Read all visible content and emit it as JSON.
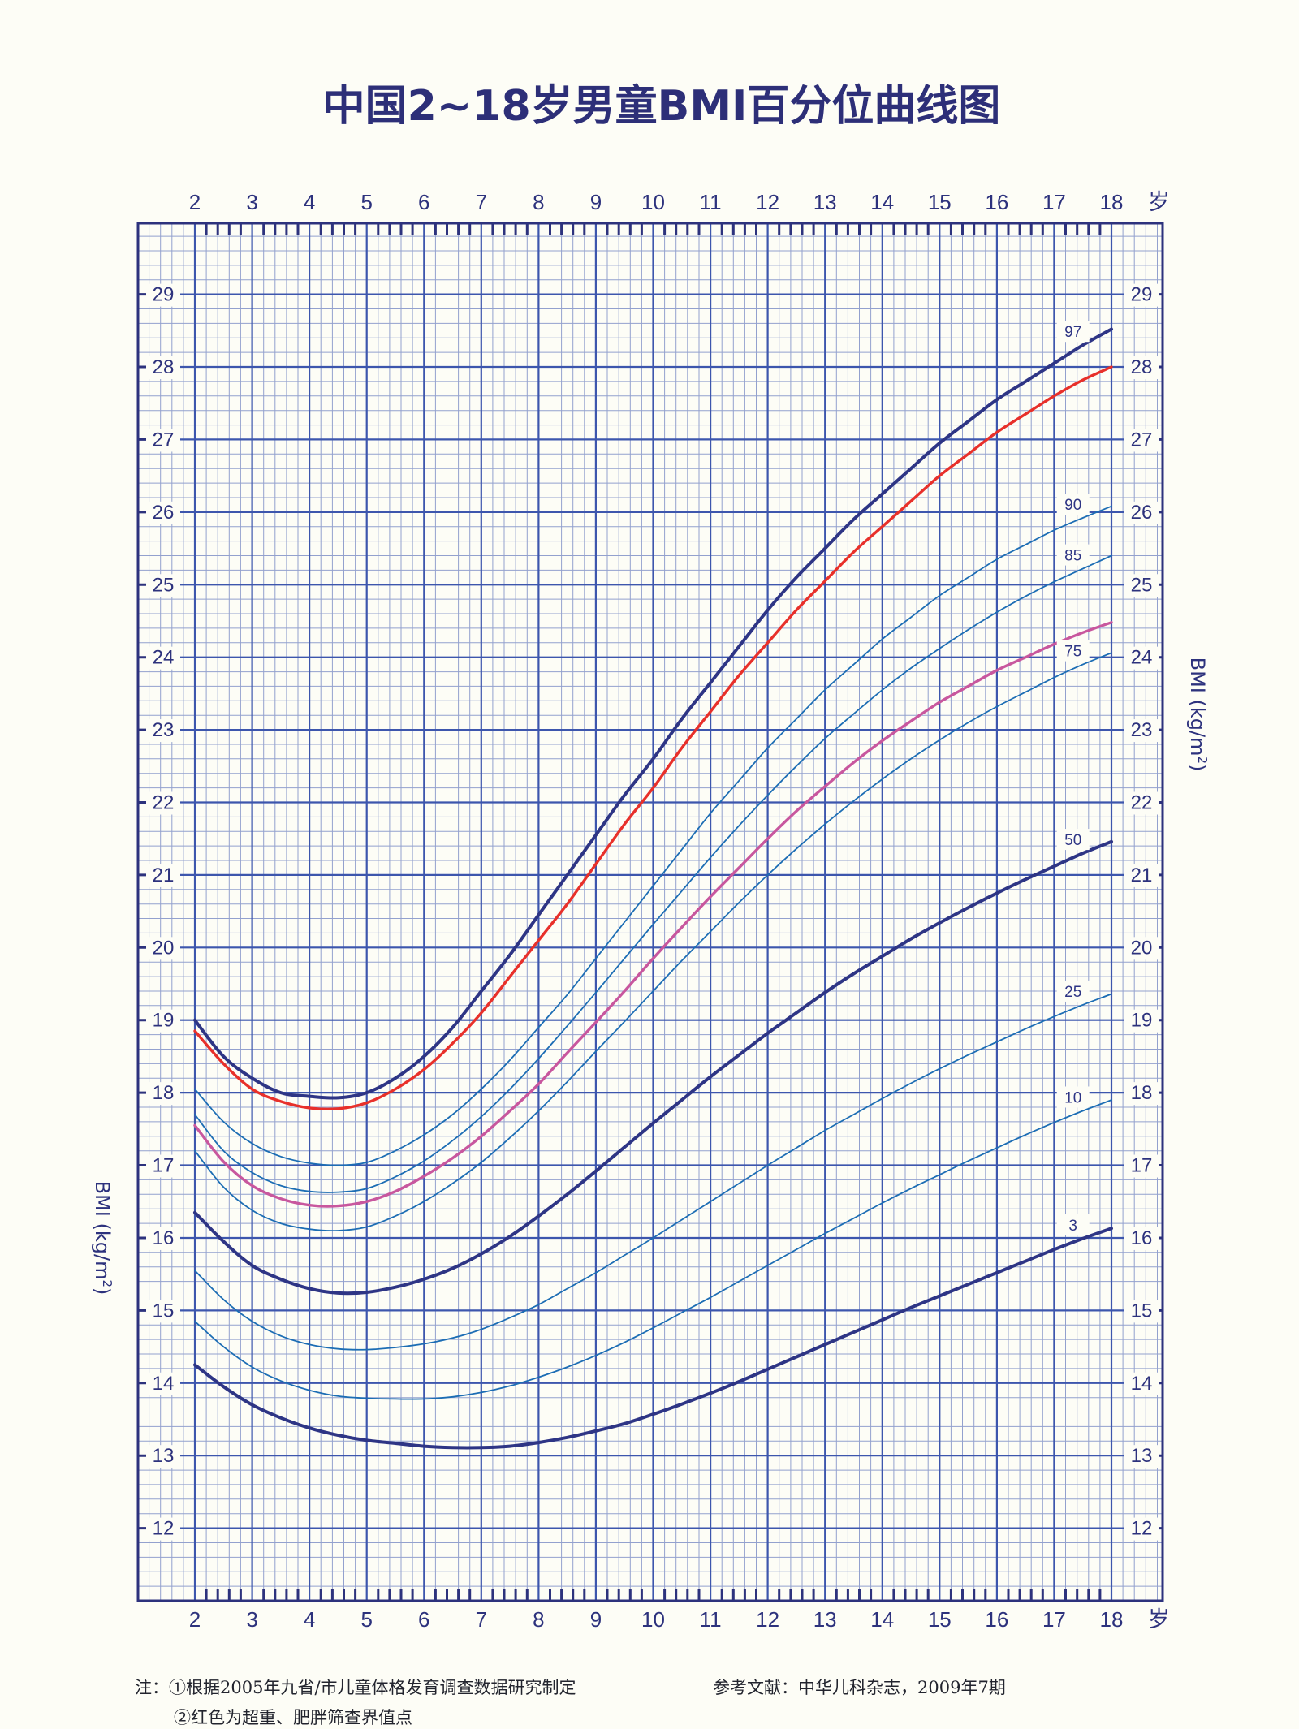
{
  "chart_data": {
    "type": "line",
    "title": "中国2~18岁男童BMI百分位曲线图",
    "x_label_unit": "岁",
    "y_label": "BMI (kg/m²)",
    "y_label_parts": {
      "main": "BMI (kg/m",
      "sup": "2",
      "close": ")"
    },
    "x_ticks": [
      2,
      3,
      4,
      5,
      6,
      7,
      8,
      9,
      10,
      11,
      12,
      13,
      14,
      15,
      16,
      17,
      18
    ],
    "y_ticks": [
      12,
      13,
      14,
      15,
      16,
      17,
      18,
      19,
      20,
      21,
      22,
      23,
      24,
      25,
      26,
      27,
      28,
      29
    ],
    "xlim": [
      2,
      18
    ],
    "ylim": [
      11,
      29.98
    ],
    "colors": {
      "grid": "#3d56ad",
      "frame": "#2d327d",
      "major_line": "#2e3585",
      "minor_line": "#1c6db4",
      "overweight": "#e8302a",
      "obesity_85": "#c8579e",
      "title": "#2d2f78"
    },
    "series": [
      {
        "name": "97",
        "label": "97",
        "style": "major",
        "extends": true,
        "x": [
          2,
          2.5,
          3,
          3.5,
          4,
          4.5,
          5,
          5.5,
          6,
          6.5,
          7,
          7.5,
          8,
          8.5,
          9,
          9.5,
          10,
          10.5,
          11,
          11.5,
          12,
          12.5,
          13,
          13.5,
          14,
          14.5,
          15,
          15.5,
          16,
          16.5,
          17,
          17.5,
          18
        ],
        "y": [
          19.0,
          18.5,
          18.2,
          18.0,
          17.95,
          17.93,
          18.0,
          18.2,
          18.5,
          18.9,
          19.4,
          19.9,
          20.45,
          21.0,
          21.55,
          22.1,
          22.6,
          23.15,
          23.65,
          24.15,
          24.65,
          25.1,
          25.5,
          25.9,
          26.25,
          26.6,
          26.95,
          27.25,
          27.55,
          27.8,
          28.05,
          28.3,
          28.52
        ]
      },
      {
        "name": "超重界值",
        "style": "overweight",
        "extends": false,
        "x": [
          2,
          2.5,
          3,
          3.5,
          4,
          4.5,
          5,
          5.5,
          6,
          6.5,
          7,
          7.5,
          8,
          8.5,
          9,
          9.5,
          10,
          10.5,
          11,
          11.5,
          12,
          12.5,
          13,
          13.5,
          14,
          14.5,
          15,
          15.5,
          16,
          16.5,
          17,
          17.5,
          18
        ],
        "y": [
          18.85,
          18.4,
          18.05,
          17.88,
          17.79,
          17.78,
          17.86,
          18.05,
          18.32,
          18.68,
          19.1,
          19.6,
          20.1,
          20.6,
          21.15,
          21.7,
          22.2,
          22.75,
          23.25,
          23.75,
          24.2,
          24.65,
          25.05,
          25.45,
          25.8,
          26.15,
          26.5,
          26.8,
          27.1,
          27.35,
          27.6,
          27.82,
          28.0
        ]
      },
      {
        "name": "90",
        "label": "90",
        "style": "minor",
        "extends": true,
        "x": [
          2,
          2.5,
          3,
          3.5,
          4,
          4.5,
          5,
          5.5,
          6,
          6.5,
          7,
          7.5,
          8,
          8.5,
          9,
          9.5,
          10,
          10.5,
          11,
          11.5,
          12,
          12.5,
          13,
          13.5,
          14,
          14.5,
          15,
          15.5,
          16,
          16.5,
          17,
          17.5,
          18
        ],
        "y": [
          18.05,
          17.6,
          17.3,
          17.12,
          17.03,
          17.0,
          17.04,
          17.2,
          17.42,
          17.7,
          18.05,
          18.45,
          18.9,
          19.35,
          19.85,
          20.35,
          20.85,
          21.35,
          21.85,
          22.3,
          22.75,
          23.15,
          23.55,
          23.9,
          24.25,
          24.55,
          24.85,
          25.1,
          25.35,
          25.55,
          25.75,
          25.92,
          26.08
        ]
      },
      {
        "name": "85",
        "label": "85",
        "style": "minor",
        "extends": true,
        "x": [
          2,
          2.5,
          3,
          3.5,
          4,
          4.5,
          5,
          5.5,
          6,
          6.5,
          7,
          7.5,
          8,
          8.5,
          9,
          9.5,
          10,
          10.5,
          11,
          11.5,
          12,
          12.5,
          13,
          13.5,
          14,
          14.5,
          15,
          15.5,
          16,
          16.5,
          17,
          17.5,
          18
        ],
        "y": [
          17.7,
          17.2,
          16.9,
          16.72,
          16.64,
          16.63,
          16.68,
          16.84,
          17.06,
          17.34,
          17.67,
          18.05,
          18.47,
          18.92,
          19.38,
          19.85,
          20.32,
          20.78,
          21.24,
          21.68,
          22.1,
          22.5,
          22.88,
          23.22,
          23.55,
          23.85,
          24.12,
          24.38,
          24.62,
          24.84,
          25.04,
          25.22,
          25.4
        ]
      },
      {
        "name": "超重界值85",
        "style": "obesity_85",
        "extends": false,
        "x": [
          2,
          2.5,
          3,
          3.5,
          4,
          4.5,
          5,
          5.5,
          6,
          6.5,
          7,
          7.5,
          8,
          8.5,
          9,
          9.5,
          10,
          10.5,
          11,
          11.5,
          12,
          12.5,
          13,
          13.5,
          14,
          14.5,
          15,
          15.5,
          16,
          16.5,
          17,
          17.5,
          18
        ],
        "y": [
          17.55,
          17.05,
          16.72,
          16.54,
          16.45,
          16.44,
          16.5,
          16.64,
          16.85,
          17.1,
          17.4,
          17.75,
          18.12,
          18.55,
          18.97,
          19.4,
          19.85,
          20.28,
          20.7,
          21.1,
          21.5,
          21.88,
          22.22,
          22.55,
          22.85,
          23.12,
          23.38,
          23.6,
          23.82,
          24.0,
          24.18,
          24.34,
          24.48
        ]
      },
      {
        "name": "75",
        "label": "75",
        "style": "minor",
        "extends": true,
        "x": [
          2,
          2.5,
          3,
          3.5,
          4,
          4.5,
          5,
          5.5,
          6,
          6.5,
          7,
          7.5,
          8,
          8.5,
          9,
          9.5,
          10,
          10.5,
          11,
          11.5,
          12,
          12.5,
          13,
          13.5,
          14,
          14.5,
          15,
          15.5,
          16,
          16.5,
          17,
          17.5,
          18
        ],
        "y": [
          17.2,
          16.7,
          16.38,
          16.2,
          16.12,
          16.1,
          16.15,
          16.3,
          16.5,
          16.75,
          17.04,
          17.38,
          17.75,
          18.15,
          18.57,
          18.98,
          19.4,
          19.82,
          20.22,
          20.62,
          21.0,
          21.36,
          21.7,
          22.02,
          22.32,
          22.6,
          22.86,
          23.1,
          23.32,
          23.52,
          23.72,
          23.9,
          24.06
        ]
      },
      {
        "name": "50",
        "label": "50",
        "style": "major",
        "extends": true,
        "x": [
          2,
          2.5,
          3,
          3.5,
          4,
          4.5,
          5,
          5.5,
          6,
          6.5,
          7,
          7.5,
          8,
          8.5,
          9,
          9.5,
          10,
          10.5,
          11,
          11.5,
          12,
          12.5,
          13,
          13.5,
          14,
          14.5,
          15,
          15.5,
          16,
          16.5,
          17,
          17.5,
          18
        ],
        "y": [
          16.35,
          15.95,
          15.62,
          15.43,
          15.3,
          15.24,
          15.25,
          15.32,
          15.43,
          15.58,
          15.78,
          16.02,
          16.3,
          16.6,
          16.92,
          17.25,
          17.58,
          17.9,
          18.22,
          18.52,
          18.82,
          19.1,
          19.38,
          19.64,
          19.88,
          20.12,
          20.34,
          20.55,
          20.75,
          20.94,
          21.12,
          21.3,
          21.46
        ]
      },
      {
        "name": "25",
        "label": "25",
        "style": "minor",
        "extends": true,
        "x": [
          2,
          2.5,
          3,
          3.5,
          4,
          4.5,
          5,
          5.5,
          6,
          6.5,
          7,
          7.5,
          8,
          8.5,
          9,
          9.5,
          10,
          10.5,
          11,
          11.5,
          12,
          12.5,
          13,
          13.5,
          14,
          14.5,
          15,
          15.5,
          16,
          16.5,
          17,
          17.5,
          18
        ],
        "y": [
          15.55,
          15.15,
          14.85,
          14.65,
          14.53,
          14.47,
          14.46,
          14.49,
          14.54,
          14.62,
          14.74,
          14.9,
          15.08,
          15.3,
          15.52,
          15.76,
          16.0,
          16.25,
          16.5,
          16.75,
          17.0,
          17.24,
          17.48,
          17.7,
          17.92,
          18.13,
          18.33,
          18.52,
          18.7,
          18.88,
          19.05,
          19.21,
          19.36
        ]
      },
      {
        "name": "10",
        "label": "10",
        "style": "minor",
        "extends": true,
        "x": [
          2,
          2.5,
          3,
          3.5,
          4,
          4.5,
          5,
          5.5,
          6,
          6.5,
          7,
          7.5,
          8,
          8.5,
          9,
          9.5,
          10,
          10.5,
          11,
          11.5,
          12,
          12.5,
          13,
          13.5,
          14,
          14.5,
          15,
          15.5,
          16,
          16.5,
          17,
          17.5,
          18
        ],
        "y": [
          14.85,
          14.5,
          14.22,
          14.03,
          13.9,
          13.82,
          13.79,
          13.78,
          13.78,
          13.81,
          13.87,
          13.96,
          14.08,
          14.22,
          14.38,
          14.56,
          14.76,
          14.97,
          15.18,
          15.4,
          15.62,
          15.84,
          16.06,
          16.27,
          16.48,
          16.68,
          16.87,
          17.06,
          17.24,
          17.42,
          17.59,
          17.75,
          17.9
        ]
      },
      {
        "name": "3",
        "label": "3",
        "style": "major",
        "extends": true,
        "x": [
          2,
          2.5,
          3,
          3.5,
          4,
          4.5,
          5,
          5.5,
          6,
          6.5,
          7,
          7.5,
          8,
          8.5,
          9,
          9.5,
          10,
          10.5,
          11,
          11.5,
          12,
          12.5,
          13,
          13.5,
          14,
          14.5,
          15,
          15.5,
          16,
          16.5,
          17,
          17.5,
          18
        ],
        "y": [
          14.25,
          13.95,
          13.7,
          13.52,
          13.38,
          13.28,
          13.21,
          13.17,
          13.13,
          13.11,
          13.11,
          13.13,
          13.18,
          13.25,
          13.34,
          13.44,
          13.57,
          13.71,
          13.86,
          14.02,
          14.19,
          14.36,
          14.53,
          14.7,
          14.87,
          15.04,
          15.2,
          15.36,
          15.52,
          15.68,
          15.84,
          15.99,
          16.13
        ]
      }
    ],
    "notes": {
      "note1": "注：①根据2005年九省/市儿童体格发育调查数据研究制定",
      "note2": "②红色为超重、肥胖筛查界值点",
      "reference": "参考文献：中华儿科杂志，2009年7期"
    }
  }
}
